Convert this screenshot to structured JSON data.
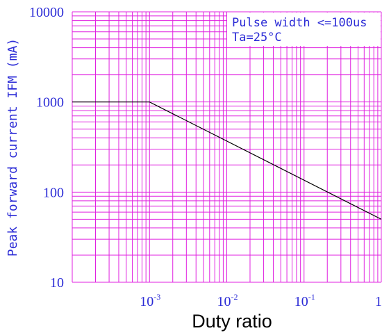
{
  "chart_data": {
    "type": "line",
    "xscale": "log",
    "yscale": "log",
    "xlim": [
      0.0001,
      1
    ],
    "ylim": [
      10,
      10000
    ],
    "grid": true,
    "xlabel": "Duty ratio",
    "ylabel": "Peak forward current IFM (mA)",
    "x_ticks": [
      {
        "base": "10",
        "exp": "-3",
        "value": 0.001
      },
      {
        "base": "10",
        "exp": "-2",
        "value": 0.01
      },
      {
        "base": "10",
        "exp": "-1",
        "value": 0.1
      },
      {
        "base": "1",
        "exp": "",
        "value": 1
      }
    ],
    "y_ticks": [
      {
        "label": "10000",
        "value": 10000
      },
      {
        "label": "1000",
        "value": 1000
      },
      {
        "label": "100",
        "value": 100
      },
      {
        "label": "10",
        "value": 10
      }
    ],
    "annotations": [
      "Pulse width <=100us",
      "Ta=25°C"
    ],
    "series": [
      {
        "x": [
          0.0001,
          0.001,
          1
        ],
        "y": [
          1000,
          1000,
          50
        ]
      }
    ],
    "colors": {
      "grid": "#e020e0",
      "line": "#000000",
      "text": "#2b2bd6"
    }
  }
}
